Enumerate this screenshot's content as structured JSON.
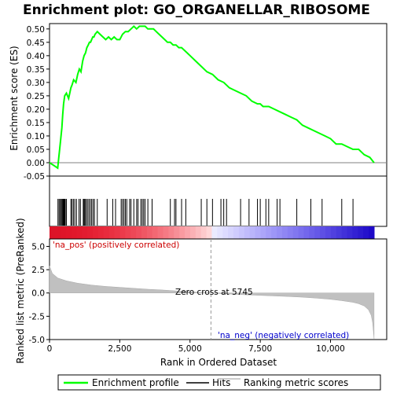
{
  "chart_data": {
    "type": "line",
    "title": "Enrichment plot: GO_ORGANELLAR_RIBOSOME",
    "panels": {
      "enrichment": {
        "ylabel": "Enrichment score (ES)",
        "ylim": [
          -0.05,
          0.52
        ],
        "yticks": [
          "-0.05",
          "0.00",
          "0.05",
          "0.10",
          "0.15",
          "0.20",
          "0.25",
          "0.30",
          "0.35",
          "0.40",
          "0.45",
          "0.50"
        ],
        "series": [
          {
            "name": "Enrichment profile",
            "color": "#00ff00",
            "x": [
              0,
              150,
              290,
              330,
              360,
              400,
              440,
              470,
              500,
              540,
              600,
              680,
              760,
              800,
              860,
              940,
              1000,
              1060,
              1120,
              1180,
              1230,
              1280,
              1330,
              1380,
              1420,
              1460,
              1500,
              1540,
              1580,
              1620,
              1700,
              1800,
              1900,
              2000,
              2100,
              2200,
              2300,
              2400,
              2500,
              2600,
              2700,
              2800,
              2900,
              3000,
              3100,
              3200,
              3300,
              3400,
              3500,
              3600,
              3700,
              3800,
              3900,
              4000,
              4100,
              4200,
              4300,
              4400,
              4500,
              4600,
              4700,
              4800,
              4900,
              5000,
              5200,
              5400,
              5600,
              5800,
              6000,
              6200,
              6400,
              6600,
              6800,
              7000,
              7200,
              7400,
              7500,
              7600,
              7700,
              7800,
              8000,
              8200,
              8400,
              8600,
              8800,
              9000,
              9200,
              9400,
              9600,
              9800,
              10000,
              10200,
              10400,
              10600,
              10800,
              11000,
              11200,
              11400,
              11550
            ],
            "y": [
              0,
              -0.01,
              -0.02,
              0.02,
              0.05,
              0.09,
              0.13,
              0.18,
              0.22,
              0.25,
              0.26,
              0.24,
              0.28,
              0.29,
              0.31,
              0.3,
              0.33,
              0.35,
              0.34,
              0.38,
              0.4,
              0.41,
              0.43,
              0.44,
              0.45,
              0.45,
              0.46,
              0.47,
              0.47,
              0.48,
              0.49,
              0.48,
              0.47,
              0.46,
              0.47,
              0.46,
              0.47,
              0.46,
              0.46,
              0.48,
              0.49,
              0.49,
              0.5,
              0.51,
              0.5,
              0.51,
              0.51,
              0.51,
              0.5,
              0.5,
              0.5,
              0.49,
              0.48,
              0.47,
              0.46,
              0.45,
              0.45,
              0.44,
              0.44,
              0.43,
              0.43,
              0.42,
              0.41,
              0.4,
              0.38,
              0.36,
              0.34,
              0.33,
              0.31,
              0.3,
              0.28,
              0.27,
              0.26,
              0.25,
              0.23,
              0.22,
              0.22,
              0.21,
              0.21,
              0.21,
              0.2,
              0.19,
              0.18,
              0.17,
              0.16,
              0.14,
              0.13,
              0.12,
              0.11,
              0.1,
              0.09,
              0.07,
              0.07,
              0.06,
              0.05,
              0.05,
              0.03,
              0.02,
              0.0
            ]
          }
        ]
      },
      "hits": {
        "name": "Hits",
        "positions": [
          300,
          340,
          380,
          420,
          450,
          480,
          500,
          520,
          540,
          560,
          600,
          760,
          800,
          850,
          900,
          960,
          1050,
          1100,
          1200,
          1230,
          1260,
          1300,
          1350,
          1400,
          1450,
          1500,
          1550,
          1600,
          1700,
          2050,
          2250,
          2350,
          2550,
          2600,
          2650,
          2700,
          2750,
          2850,
          2900,
          3000,
          3100,
          3150,
          3250,
          3300,
          3350,
          3400,
          3500,
          3650,
          4300,
          4450,
          4500,
          4700,
          4850,
          5400,
          5600,
          5800,
          6100,
          6200,
          6300,
          6800,
          7100,
          7400,
          7500,
          7700,
          7800,
          8100,
          8200,
          8800,
          9300,
          9700,
          10400,
          10800
        ]
      },
      "ranked_metric": {
        "ylabel": "Ranked list metric (PreRanked)",
        "ylim": [
          -5,
          5.8
        ],
        "yticks": [
          "-5.0",
          "-2.5",
          "0.0",
          "2.5",
          "5.0"
        ],
        "name": "Ranking metric scores",
        "x": [
          0,
          100,
          300,
          600,
          1000,
          1500,
          2000,
          2500,
          3000,
          3500,
          4000,
          4500,
          5000,
          5500,
          5745,
          6000,
          6500,
          7000,
          7500,
          8000,
          8500,
          9000,
          9500,
          10000,
          10400,
          10800,
          11000,
          11200,
          11350,
          11450,
          11500,
          11550
        ],
        "y": [
          2.9,
          2.1,
          1.6,
          1.3,
          1.05,
          0.85,
          0.7,
          0.6,
          0.5,
          0.4,
          0.32,
          0.22,
          0.12,
          0.04,
          0.0,
          -0.05,
          -0.12,
          -0.2,
          -0.26,
          -0.32,
          -0.38,
          -0.45,
          -0.55,
          -0.68,
          -0.82,
          -1.0,
          -1.15,
          -1.4,
          -1.8,
          -2.4,
          -3.2,
          -4.9
        ]
      }
    },
    "xlabel": "Rank in Ordered Dataset",
    "xlim": [
      0,
      12000
    ],
    "xticks": [
      "0",
      "2,500",
      "5,000",
      "7,500",
      "10,000"
    ],
    "annotations": {
      "pos_label": "'na_pos' (positively correlated)",
      "neg_label": "'na_neg' (negatively correlated)",
      "zero_cross": "Zero cross at 5745",
      "zero_cross_x": 5745,
      "pos_color": "#cc0000",
      "neg_color": "#0000cc"
    },
    "legend": {
      "placement": "bottom",
      "items": [
        {
          "label": "Enrichment profile",
          "color": "#00ff00"
        },
        {
          "label": "Hits",
          "color": "#000000"
        },
        {
          "label": "Ranking metric scores",
          "color": "#bbbbbb"
        }
      ]
    }
  }
}
